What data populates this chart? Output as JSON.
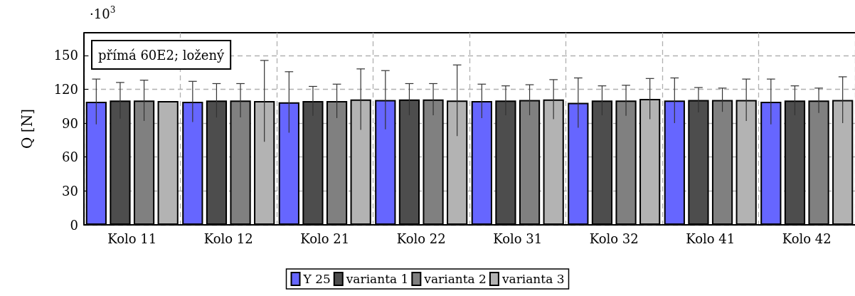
{
  "chart_data": {
    "type": "bar",
    "categories": [
      "Kolo 11",
      "Kolo 12",
      "Kolo 21",
      "Kolo 22",
      "Kolo 31",
      "Kolo 32",
      "Kolo 41",
      "Kolo 42"
    ],
    "series": [
      {
        "name": "Y 25",
        "color": "#6666ff",
        "values": [
          109,
          109,
          108.5,
          110.5,
          109.5,
          108,
          110,
          109
        ],
        "errors": [
          20,
          18,
          27,
          26,
          15,
          22,
          20,
          20
        ]
      },
      {
        "name": "varianta 1",
        "color": "#4d4d4d",
        "values": [
          110,
          110,
          109.5,
          111,
          110,
          110,
          110.5,
          110
        ],
        "errors": [
          16,
          15,
          13,
          14,
          13,
          13,
          11,
          13
        ]
      },
      {
        "name": "varianta 2",
        "color": "#808080",
        "values": [
          110,
          110,
          109.5,
          111,
          110.5,
          110,
          110.5,
          110
        ],
        "errors": [
          18,
          15,
          15,
          14,
          13.5,
          13.5,
          10.5,
          11
        ]
      },
      {
        "name": "varianta 3",
        "color": "#b3b3b3",
        "values": [
          109.5,
          109.5,
          111,
          110,
          111,
          111.5,
          110.5,
          110.5
        ],
        "errors": [
          null,
          36,
          27,
          31.5,
          17.5,
          18,
          18.5,
          20.5
        ]
      }
    ],
    "ylabel": "Q [N]",
    "ylim": [
      0,
      170
    ],
    "yticks": [
      0,
      30,
      60,
      90,
      120,
      150
    ],
    "annotations": [
      "přímá 60E2; ložený",
      "·10$^{3}$"
    ],
    "grid": true,
    "legend": "bottom"
  }
}
